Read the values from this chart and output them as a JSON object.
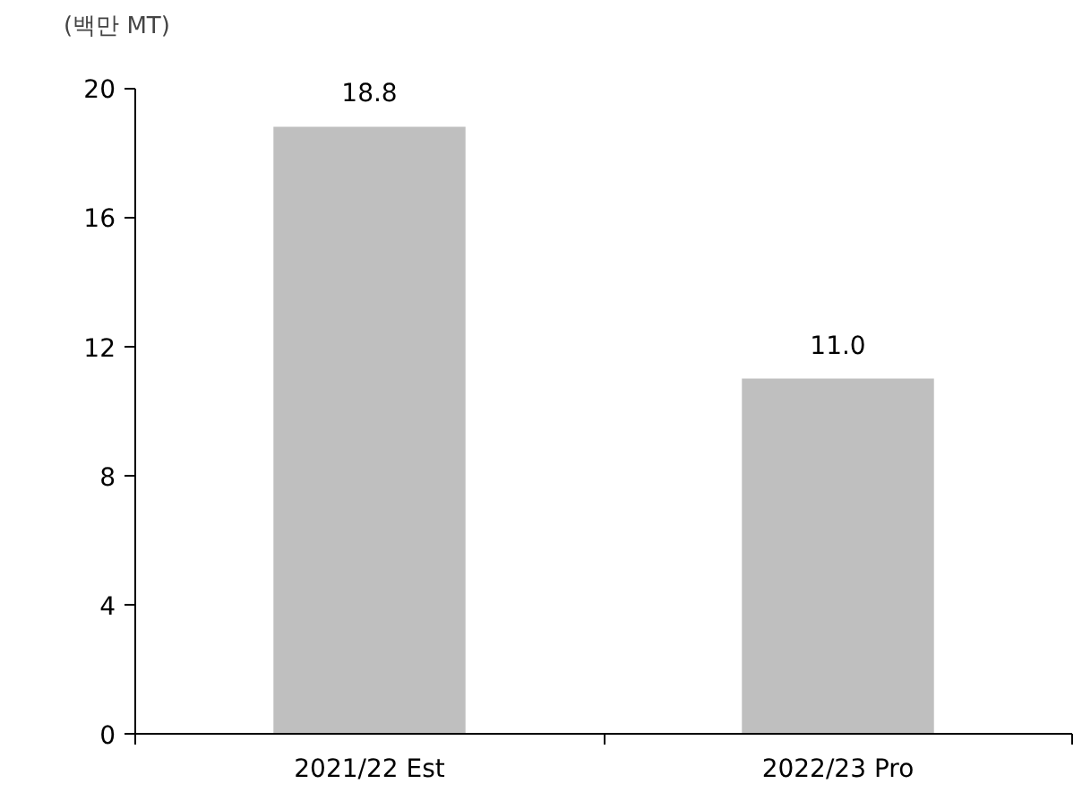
{
  "chart_data": {
    "type": "bar",
    "ylabel": "(백만 MT)",
    "categories": [
      "2021/22 Est",
      "2022/23 Pro"
    ],
    "values": [
      18.8,
      11.0
    ],
    "value_labels": [
      "18.8",
      "11.0"
    ],
    "color": "#bfbfbf",
    "ylim": [
      0,
      20
    ],
    "yticks": [
      0,
      4,
      8,
      12,
      16,
      20
    ],
    "grid": false
  }
}
